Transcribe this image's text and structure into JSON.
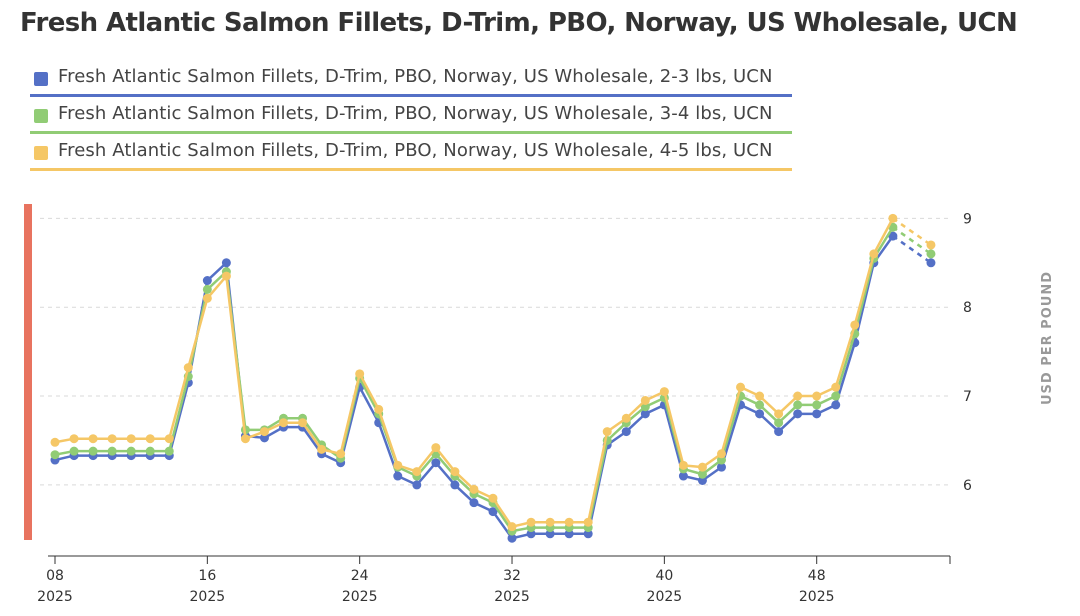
{
  "chart_data": {
    "type": "line",
    "title": "Fresh Atlantic Salmon Fillets, D-Trim, PBO, Norway, US Wholesale, UCN",
    "ylabel": "USD PER POUND",
    "xlabel": "",
    "ylim": [
      5.2,
      9.15
    ],
    "yticks": [
      6,
      7,
      8,
      9
    ],
    "xrange": [
      8,
      55
    ],
    "xticks": [
      {
        "week": 8,
        "label": "08",
        "year": "2025"
      },
      {
        "week": 16,
        "label": "16",
        "year": "2025"
      },
      {
        "week": 24,
        "label": "24",
        "year": "2025"
      },
      {
        "week": 32,
        "label": "32",
        "year": "2025"
      },
      {
        "week": 40,
        "label": "40",
        "year": "2025"
      },
      {
        "week": 48,
        "label": "48",
        "year": "2025"
      }
    ],
    "x": [
      8,
      9,
      10,
      11,
      12,
      13,
      14,
      15,
      16,
      17,
      18,
      19,
      20,
      21,
      22,
      23,
      24,
      25,
      26,
      27,
      28,
      29,
      30,
      31,
      32,
      33,
      34,
      35,
      36,
      37,
      38,
      39,
      40,
      41,
      42,
      43,
      44,
      45,
      46,
      47,
      48,
      49,
      50,
      51,
      52,
      54
    ],
    "forecast_from_index": 44,
    "series": [
      {
        "name": "Fresh Atlantic Salmon Fillets, D-Trim, PBO, Norway, US Wholesale, 2-3 lbs, UCN",
        "color": "#5470c6",
        "values": [
          6.28,
          6.33,
          6.33,
          6.33,
          6.33,
          6.33,
          6.33,
          7.15,
          8.3,
          8.5,
          6.55,
          6.53,
          6.65,
          6.65,
          6.35,
          6.25,
          7.1,
          6.7,
          6.1,
          6.0,
          6.25,
          6.0,
          5.8,
          5.7,
          5.4,
          5.45,
          5.45,
          5.45,
          5.45,
          6.45,
          6.6,
          6.8,
          6.9,
          6.1,
          6.05,
          6.2,
          6.9,
          6.8,
          6.6,
          6.8,
          6.8,
          6.9,
          7.6,
          8.5,
          8.8,
          8.5
        ]
      },
      {
        "name": "Fresh Atlantic Salmon Fillets, D-Trim, PBO, Norway, US Wholesale, 3-4 lbs, UCN",
        "color": "#91cc75",
        "values": [
          6.34,
          6.38,
          6.38,
          6.38,
          6.38,
          6.38,
          6.38,
          7.22,
          8.2,
          8.4,
          6.62,
          6.62,
          6.75,
          6.75,
          6.45,
          6.3,
          7.2,
          6.8,
          6.2,
          6.1,
          6.35,
          6.1,
          5.9,
          5.8,
          5.48,
          5.52,
          5.52,
          5.52,
          5.52,
          6.5,
          6.7,
          6.88,
          6.98,
          6.18,
          6.12,
          6.28,
          7.0,
          6.9,
          6.7,
          6.9,
          6.9,
          7.0,
          7.7,
          8.55,
          8.9,
          8.6
        ]
      },
      {
        "name": "Fresh Atlantic Salmon Fillets, D-Trim, PBO, Norway, US Wholesale, 4-5 lbs, UCN",
        "color": "#f5c766",
        "values": [
          6.48,
          6.52,
          6.52,
          6.52,
          6.52,
          6.52,
          6.52,
          7.32,
          8.1,
          8.35,
          6.52,
          6.6,
          6.7,
          6.7,
          6.4,
          6.35,
          7.25,
          6.85,
          6.22,
          6.15,
          6.42,
          6.15,
          5.95,
          5.85,
          5.53,
          5.58,
          5.58,
          5.58,
          5.58,
          6.6,
          6.75,
          6.95,
          7.05,
          6.22,
          6.2,
          6.35,
          7.1,
          7.0,
          6.8,
          7.0,
          7.0,
          7.1,
          7.8,
          8.6,
          9.0,
          8.7
        ]
      }
    ]
  }
}
